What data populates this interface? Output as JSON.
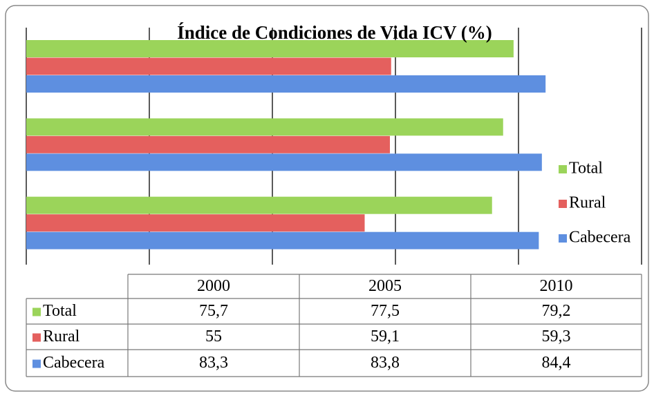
{
  "chart_data": {
    "type": "bar",
    "orientation": "horizontal",
    "title": "Índice de Condiciones de Vida ICV (%)",
    "categories": [
      "2000",
      "2005",
      "2010"
    ],
    "series": [
      {
        "name": "Total",
        "color": "#9bd45a",
        "values": [
          75.7,
          77.5,
          79.2
        ],
        "value_labels": [
          "75,7",
          "77,5",
          "79,2"
        ]
      },
      {
        "name": "Rural",
        "color": "#e4605e",
        "values": [
          55,
          59.1,
          59.3
        ],
        "value_labels": [
          "55",
          "59,1",
          "59,3"
        ]
      },
      {
        "name": "Cabecera",
        "color": "#5e8fe0",
        "values": [
          83.3,
          83.8,
          84.4
        ],
        "value_labels": [
          "83,3",
          "83,8",
          "84,4"
        ]
      }
    ],
    "xlim": [
      0,
      100
    ],
    "xticks": [
      0,
      20,
      40,
      60,
      80,
      100
    ],
    "grid": true,
    "legend": "right"
  }
}
